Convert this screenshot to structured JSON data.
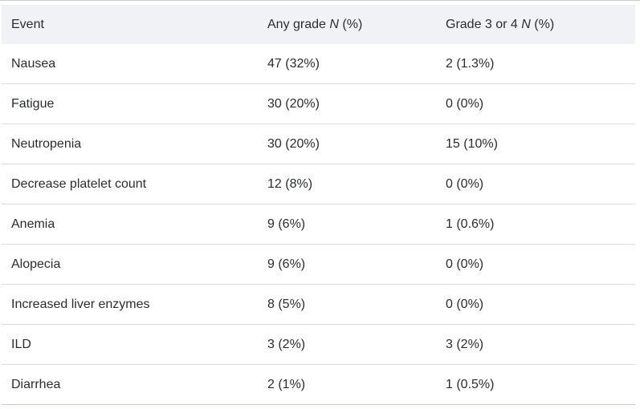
{
  "colors": {
    "header_bg": "#f0f2f6",
    "row_divider": "#d9dbdf",
    "top_border": "#c9ccd2",
    "bottom_border": "#c6c9ce",
    "text": "#2b2c2e",
    "page_bg": "#ffffff"
  },
  "table": {
    "columns": [
      {
        "prefix": "Event",
        "italic": "",
        "suffix": ""
      },
      {
        "prefix": "Any grade ",
        "italic": "N",
        "suffix": " (%)"
      },
      {
        "prefix": "Grade 3 or 4 ",
        "italic": "N",
        "suffix": " (%)"
      }
    ],
    "rows": [
      {
        "event": "Nausea",
        "any_grade": "47 (32%)",
        "grade_3_or_4": "2 (1.3%)"
      },
      {
        "event": "Fatigue",
        "any_grade": "30 (20%)",
        "grade_3_or_4": "0 (0%)"
      },
      {
        "event": "Neutropenia",
        "any_grade": "30 (20%)",
        "grade_3_or_4": "15 (10%)"
      },
      {
        "event": "Decrease platelet count",
        "any_grade": "12 (8%)",
        "grade_3_or_4": "0 (0%)"
      },
      {
        "event": "Anemia",
        "any_grade": "9 (6%)",
        "grade_3_or_4": "1 (0.6%)"
      },
      {
        "event": "Alopecia",
        "any_grade": "9 (6%)",
        "grade_3_or_4": "0 (0%)"
      },
      {
        "event": "Increased liver enzymes",
        "any_grade": "8 (5%)",
        "grade_3_or_4": "0 (0%)"
      },
      {
        "event": "ILD",
        "any_grade": "3 (2%)",
        "grade_3_or_4": "3 (2%)"
      },
      {
        "event": "Diarrhea",
        "any_grade": "2 (1%)",
        "grade_3_or_4": "1 (0.5%)"
      }
    ]
  },
  "chart_data": {
    "type": "table",
    "title": "",
    "columns": [
      "Event",
      "Any grade N (%)",
      "Grade 3 or 4 N (%)"
    ],
    "categories": [
      "Nausea",
      "Fatigue",
      "Neutropenia",
      "Decrease platelet count",
      "Anemia",
      "Alopecia",
      "Increased liver enzymes",
      "ILD",
      "Diarrhea"
    ],
    "series": [
      {
        "name": "Any grade N",
        "values": [
          47,
          30,
          30,
          12,
          9,
          9,
          8,
          3,
          2
        ]
      },
      {
        "name": "Any grade %",
        "values": [
          32,
          20,
          20,
          8,
          6,
          6,
          5,
          2,
          1
        ]
      },
      {
        "name": "Grade 3 or 4 N",
        "values": [
          2,
          0,
          15,
          0,
          1,
          0,
          0,
          3,
          1
        ]
      },
      {
        "name": "Grade 3 or 4 %",
        "values": [
          1.3,
          0,
          10,
          0,
          0.6,
          0,
          0,
          2,
          0.5
        ]
      }
    ]
  }
}
